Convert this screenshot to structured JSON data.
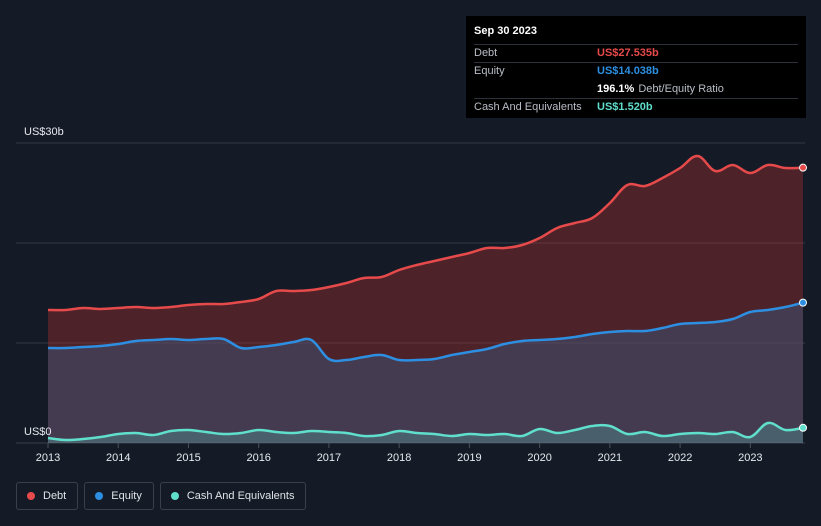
{
  "tooltip": {
    "date": "Sep 30 2023",
    "debt_label": "Debt",
    "debt_value": "US$27.535b",
    "equity_label": "Equity",
    "equity_value": "US$14.038b",
    "ratio_value": "196.1%",
    "ratio_label": "Debt/Equity Ratio",
    "cash_label": "Cash And Equivalents",
    "cash_value": "US$1.520b"
  },
  "legend": {
    "debt": "Debt",
    "equity": "Equity",
    "cash": "Cash And Equivalents"
  },
  "colors": {
    "debt": "#e64a4a",
    "equity": "#2d8fe2",
    "cash": "#5fdfcc",
    "ratio": "#ffffff"
  },
  "chart_data": {
    "type": "area",
    "ylabel_top": "US$30b",
    "ylabel_bottom": "US$0",
    "ylim": [
      0,
      30
    ],
    "xlim": [
      2013.0,
      2023.75
    ],
    "x_ticks": [
      "2013",
      "2014",
      "2015",
      "2016",
      "2017",
      "2018",
      "2019",
      "2020",
      "2021",
      "2022",
      "2023"
    ],
    "grid": true,
    "legend_position": "bottom-left",
    "series": [
      {
        "name": "Debt",
        "x": [
          2013.0,
          2013.25,
          2013.5,
          2013.75,
          2014.0,
          2014.25,
          2014.5,
          2014.75,
          2015.0,
          2015.25,
          2015.5,
          2015.75,
          2016.0,
          2016.25,
          2016.5,
          2016.75,
          2017.0,
          2017.25,
          2017.5,
          2017.75,
          2018.0,
          2018.25,
          2018.5,
          2018.75,
          2019.0,
          2019.25,
          2019.5,
          2019.75,
          2020.0,
          2020.25,
          2020.5,
          2020.75,
          2021.0,
          2021.25,
          2021.5,
          2021.75,
          2022.0,
          2022.25,
          2022.5,
          2022.75,
          2023.0,
          2023.25,
          2023.5,
          2023.75
        ],
        "values": [
          13.3,
          13.3,
          13.5,
          13.4,
          13.5,
          13.6,
          13.5,
          13.6,
          13.8,
          13.9,
          13.9,
          14.1,
          14.4,
          15.2,
          15.2,
          15.3,
          15.6,
          16.0,
          16.5,
          16.6,
          17.3,
          17.8,
          18.2,
          18.6,
          19.0,
          19.5,
          19.5,
          19.8,
          20.5,
          21.5,
          22.0,
          22.5,
          24.0,
          25.8,
          25.7,
          26.5,
          27.5,
          28.7,
          27.2,
          27.8,
          27.0,
          27.8,
          27.5,
          27.535
        ]
      },
      {
        "name": "Equity",
        "x": [
          2013.0,
          2013.25,
          2013.5,
          2013.75,
          2014.0,
          2014.25,
          2014.5,
          2014.75,
          2015.0,
          2015.25,
          2015.5,
          2015.75,
          2016.0,
          2016.25,
          2016.5,
          2016.75,
          2017.0,
          2017.25,
          2017.5,
          2017.75,
          2018.0,
          2018.25,
          2018.5,
          2018.75,
          2019.0,
          2019.25,
          2019.5,
          2019.75,
          2020.0,
          2020.25,
          2020.5,
          2020.75,
          2021.0,
          2021.25,
          2021.5,
          2021.75,
          2022.0,
          2022.25,
          2022.5,
          2022.75,
          2023.0,
          2023.25,
          2023.5,
          2023.75
        ],
        "values": [
          9.5,
          9.5,
          9.6,
          9.7,
          9.9,
          10.2,
          10.3,
          10.4,
          10.3,
          10.4,
          10.4,
          9.5,
          9.6,
          9.8,
          10.1,
          10.3,
          8.4,
          8.3,
          8.6,
          8.8,
          8.3,
          8.3,
          8.4,
          8.8,
          9.1,
          9.4,
          9.9,
          10.2,
          10.3,
          10.4,
          10.6,
          10.9,
          11.1,
          11.2,
          11.2,
          11.5,
          11.9,
          12.0,
          12.1,
          12.4,
          13.1,
          13.3,
          13.6,
          14.038
        ]
      },
      {
        "name": "Cash And Equivalents",
        "x": [
          2013.0,
          2013.25,
          2013.5,
          2013.75,
          2014.0,
          2014.25,
          2014.5,
          2014.75,
          2015.0,
          2015.25,
          2015.5,
          2015.75,
          2016.0,
          2016.25,
          2016.5,
          2016.75,
          2017.0,
          2017.25,
          2017.5,
          2017.75,
          2018.0,
          2018.25,
          2018.5,
          2018.75,
          2019.0,
          2019.25,
          2019.5,
          2019.75,
          2020.0,
          2020.25,
          2020.5,
          2020.75,
          2021.0,
          2021.25,
          2021.5,
          2021.75,
          2022.0,
          2022.25,
          2022.5,
          2022.75,
          2023.0,
          2023.25,
          2023.5,
          2023.75
        ],
        "values": [
          0.5,
          0.3,
          0.4,
          0.6,
          0.9,
          1.0,
          0.8,
          1.2,
          1.3,
          1.1,
          0.9,
          1.0,
          1.3,
          1.1,
          1.0,
          1.2,
          1.1,
          1.0,
          0.7,
          0.8,
          1.2,
          1.0,
          0.9,
          0.7,
          0.9,
          0.8,
          0.9,
          0.7,
          1.4,
          1.0,
          1.3,
          1.7,
          1.7,
          0.9,
          1.1,
          0.7,
          0.9,
          1.0,
          0.9,
          1.1,
          0.6,
          2.0,
          1.3,
          1.52
        ]
      }
    ]
  }
}
